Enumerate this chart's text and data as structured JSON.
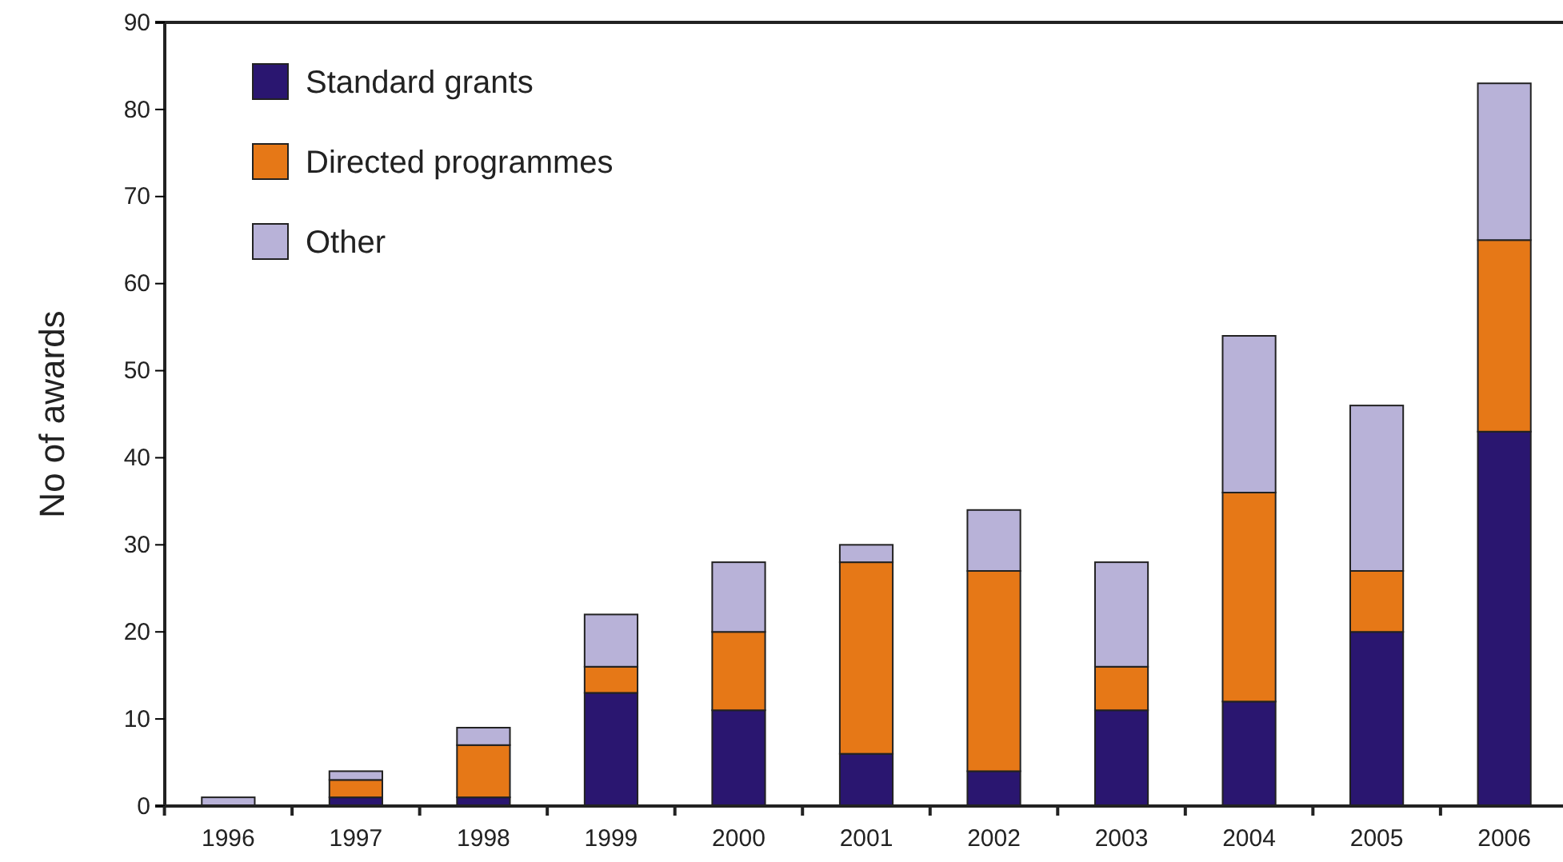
{
  "chart_data": {
    "type": "bar",
    "stacked": true,
    "ylabel": "No of awards",
    "categories": [
      "1996",
      "1997",
      "1998",
      "1999",
      "2000",
      "2001",
      "2002",
      "2003",
      "2004",
      "2005",
      "2006"
    ],
    "series": [
      {
        "name": "Standard grants",
        "color": "#2a1670",
        "values": [
          0,
          1,
          1,
          13,
          11,
          6,
          4,
          11,
          12,
          20,
          43
        ]
      },
      {
        "name": "Directed programmes",
        "color": "#e67817",
        "values": [
          0,
          2,
          6,
          3,
          9,
          22,
          23,
          5,
          24,
          7,
          22
        ]
      },
      {
        "name": "Other",
        "color": "#b8b2d8",
        "values": [
          1,
          1,
          2,
          6,
          8,
          2,
          7,
          12,
          18,
          19,
          18
        ]
      }
    ],
    "ylim": [
      0,
      90
    ],
    "yticks": [
      0,
      10,
      20,
      30,
      40,
      50,
      60,
      70,
      80,
      90
    ],
    "grid": false,
    "legend": "top left"
  }
}
